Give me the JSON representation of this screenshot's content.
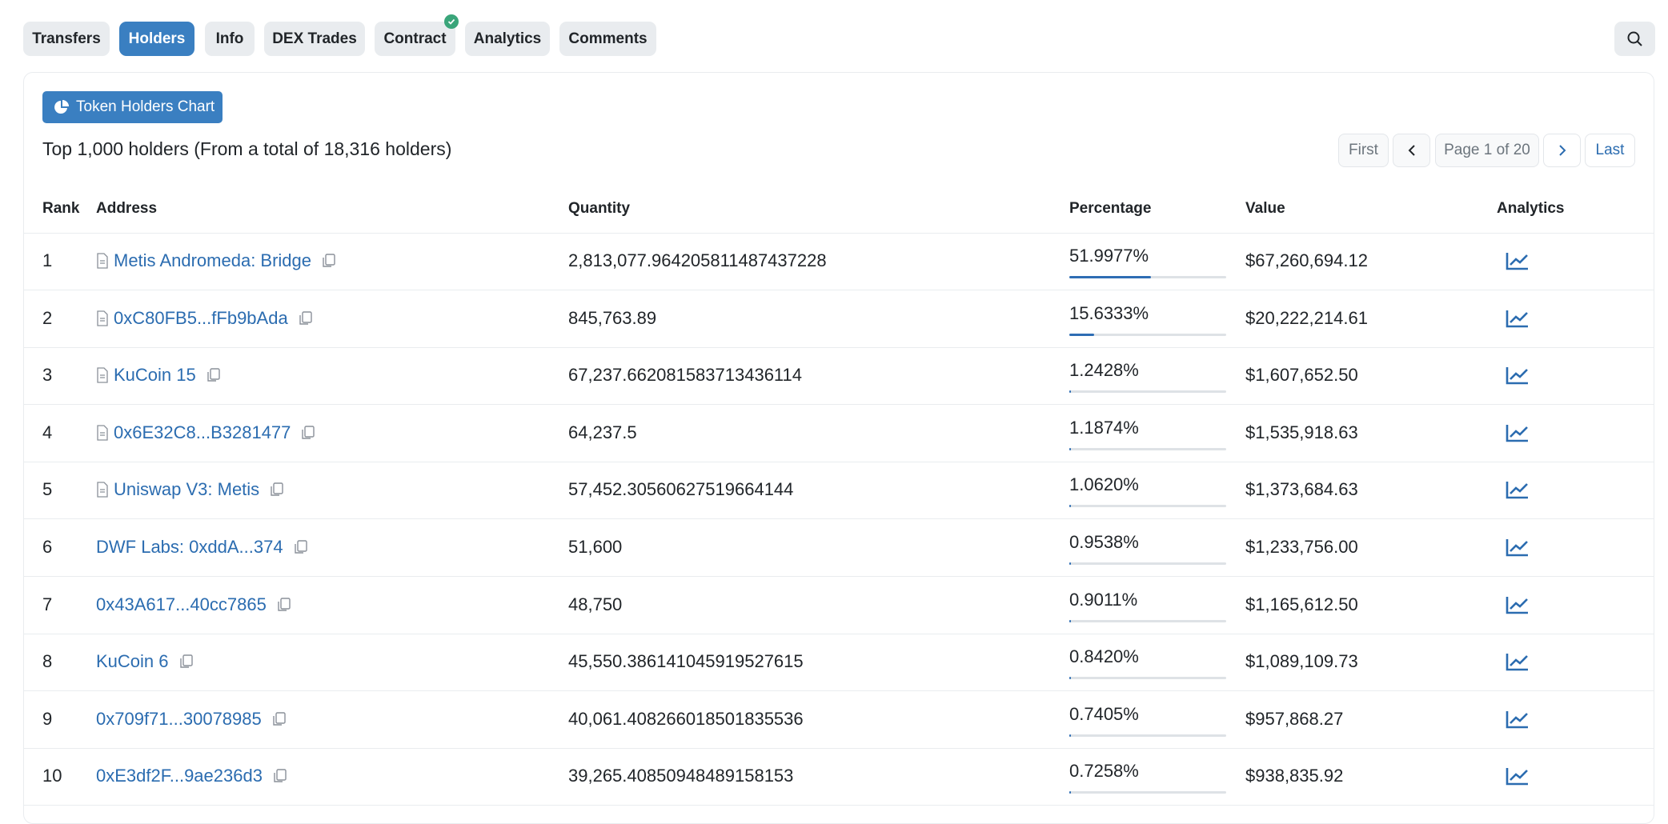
{
  "tabs": [
    "Transfers",
    "Holders",
    "Info",
    "DEX Trades",
    "Contract",
    "Analytics",
    "Comments"
  ],
  "active_tab": 1,
  "chart_button": "Token Holders Chart",
  "summary": "Top 1,000 holders (From a total of 18,316 holders)",
  "pagination": {
    "first": "First",
    "page": "Page 1 of 20",
    "last": "Last"
  },
  "table": {
    "headers": [
      "Rank",
      "Address",
      "Quantity",
      "Percentage",
      "Value",
      "Analytics"
    ],
    "rows": [
      {
        "rank": "1",
        "address": "Metis Andromeda: Bridge",
        "contract_icon": true,
        "quantity": "2,813,077.964205811487437228",
        "percent": 51.9977,
        "percent_label": "51.9977%",
        "value": "$67,260,694.12"
      },
      {
        "rank": "2",
        "address": "0xC80FB5...fFb9bAda",
        "contract_icon": true,
        "quantity": "845,763.89",
        "percent": 15.6333,
        "percent_label": "15.6333%",
        "value": "$20,222,214.61"
      },
      {
        "rank": "3",
        "address": "KuCoin 15",
        "contract_icon": true,
        "quantity": "67,237.662081583713436114",
        "percent": 1.2428,
        "percent_label": "1.2428%",
        "value": "$1,607,652.50"
      },
      {
        "rank": "4",
        "address": "0x6E32C8...B3281477",
        "contract_icon": true,
        "quantity": "64,237.5",
        "percent": 1.1874,
        "percent_label": "1.1874%",
        "value": "$1,535,918.63"
      },
      {
        "rank": "5",
        "address": "Uniswap V3: Metis",
        "contract_icon": true,
        "quantity": "57,452.30560627519664144",
        "percent": 1.062,
        "percent_label": "1.0620%",
        "value": "$1,373,684.63"
      },
      {
        "rank": "6",
        "address": "DWF Labs: 0xddA...374",
        "contract_icon": false,
        "quantity": "51,600",
        "percent": 0.9538,
        "percent_label": "0.9538%",
        "value": "$1,233,756.00"
      },
      {
        "rank": "7",
        "address": "0x43A617...40cc7865",
        "contract_icon": false,
        "quantity": "48,750",
        "percent": 0.9011,
        "percent_label": "0.9011%",
        "value": "$1,165,612.50"
      },
      {
        "rank": "8",
        "address": "KuCoin 6",
        "contract_icon": false,
        "quantity": "45,550.386141045919527615",
        "percent": 0.842,
        "percent_label": "0.8420%",
        "value": "$1,089,109.73"
      },
      {
        "rank": "9",
        "address": "0x709f71...30078985",
        "contract_icon": false,
        "quantity": "40,061.408266018501835536",
        "percent": 0.7405,
        "percent_label": "0.7405%",
        "value": "$957,868.27"
      },
      {
        "rank": "10",
        "address": "0xE3df2F...9ae236d3",
        "contract_icon": false,
        "quantity": "39,265.40850948489158153",
        "percent": 0.7258,
        "percent_label": "0.7258%",
        "value": "$938,835.92"
      }
    ]
  }
}
